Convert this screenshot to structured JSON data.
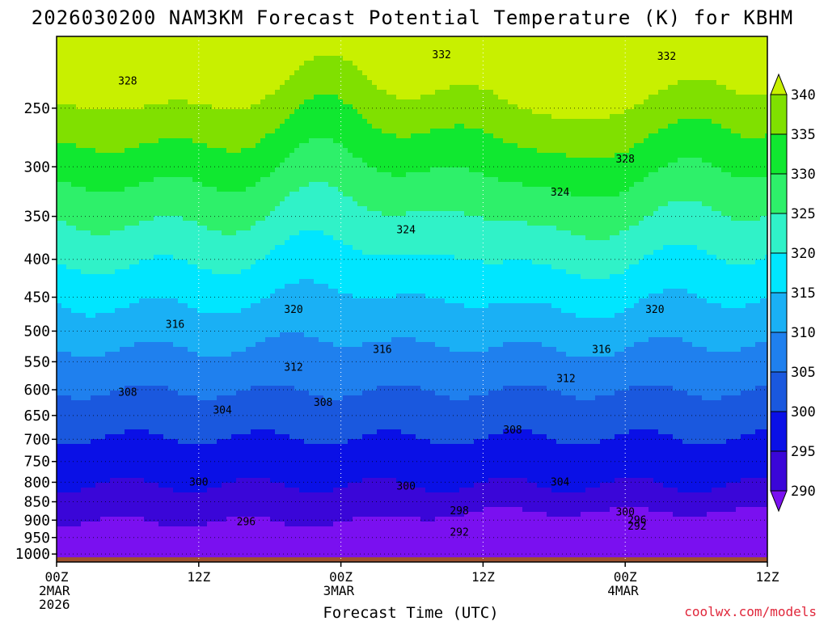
{
  "chart_data": {
    "type": "contour",
    "title": "2026030200 NAM3KM Forecast Potential Temperature (K) for KBHM",
    "xlabel": "Forecast Time (UTC)",
    "ylabel": "",
    "x_ticks": [
      {
        "hour": 0,
        "lines": [
          "00Z",
          "2MAR",
          "2026"
        ]
      },
      {
        "hour": 12,
        "lines": [
          "12Z"
        ]
      },
      {
        "hour": 24,
        "lines": [
          "00Z",
          "3MAR"
        ]
      },
      {
        "hour": 36,
        "lines": [
          "12Z"
        ]
      },
      {
        "hour": 48,
        "lines": [
          "00Z",
          "4MAR"
        ]
      },
      {
        "hour": 60,
        "lines": [
          "12Z"
        ]
      }
    ],
    "xlim": [
      0,
      60
    ],
    "y_ticks": [
      250,
      300,
      350,
      400,
      450,
      500,
      550,
      600,
      650,
      700,
      750,
      800,
      850,
      900,
      950,
      1000
    ],
    "ylim": [
      200,
      1025
    ],
    "y_scale": "log",
    "colorbar": {
      "levels": [
        290,
        295,
        300,
        305,
        310,
        315,
        320,
        325,
        330,
        335,
        340
      ],
      "colors": [
        "#7a10f0",
        "#3a06d8",
        "#0a10e6",
        "#1a58de",
        "#1f80ee",
        "#1ab0f5",
        "#00e6ff",
        "#30f2c8",
        "#2ef06a",
        "#10e830",
        "#80e000",
        "#c8f000"
      ]
    },
    "contour_labels": [
      {
        "text": "332",
        "hour": 32.5,
        "p": 212
      },
      {
        "text": "332",
        "hour": 51.5,
        "p": 213
      },
      {
        "text": "328",
        "hour": 6.0,
        "p": 230
      },
      {
        "text": "328",
        "hour": 48.0,
        "p": 293
      },
      {
        "text": "324",
        "hour": 42.5,
        "p": 325
      },
      {
        "text": "324",
        "hour": 29.5,
        "p": 365
      },
      {
        "text": "320",
        "hour": 20.0,
        "p": 468
      },
      {
        "text": "320",
        "hour": 50.5,
        "p": 468
      },
      {
        "text": "316",
        "hour": 10.0,
        "p": 490
      },
      {
        "text": "316",
        "hour": 27.5,
        "p": 530
      },
      {
        "text": "316",
        "hour": 46.0,
        "p": 530
      },
      {
        "text": "312",
        "hour": 20.0,
        "p": 560
      },
      {
        "text": "312",
        "hour": 43.0,
        "p": 580
      },
      {
        "text": "308",
        "hour": 6.0,
        "p": 605
      },
      {
        "text": "308",
        "hour": 22.5,
        "p": 625
      },
      {
        "text": "308",
        "hour": 38.5,
        "p": 680
      },
      {
        "text": "304",
        "hour": 14.0,
        "p": 640
      },
      {
        "text": "304",
        "hour": 42.5,
        "p": 800
      },
      {
        "text": "300",
        "hour": 12.0,
        "p": 800
      },
      {
        "text": "300",
        "hour": 29.5,
        "p": 810
      },
      {
        "text": "300",
        "hour": 48.0,
        "p": 878
      },
      {
        "text": "298",
        "hour": 34.0,
        "p": 875
      },
      {
        "text": "296",
        "hour": 16.0,
        "p": 905
      },
      {
        "text": "296",
        "hour": 49.0,
        "p": 900
      },
      {
        "text": "292",
        "hour": 34.0,
        "p": 935
      },
      {
        "text": "292",
        "hour": 49.0,
        "p": 918
      }
    ],
    "ground_color": "#a0522d"
  },
  "watermark": "coolwx.com/models"
}
